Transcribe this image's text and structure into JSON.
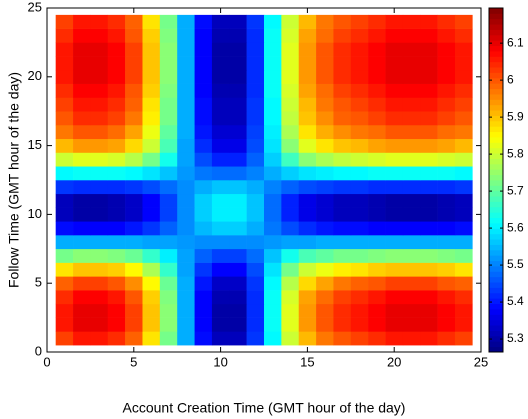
{
  "chart_data": {
    "type": "heatmap",
    "x_label": "Account Creation Time (GMT hour of the day)",
    "y_label": "Follow Time (GMT hour of the day)",
    "x": [
      1,
      2,
      3,
      4,
      5,
      6,
      7,
      8,
      9,
      10,
      11,
      12,
      13,
      14,
      15,
      16,
      17,
      18,
      19,
      20,
      21,
      22,
      23,
      24
    ],
    "y": [
      1,
      2,
      3,
      4,
      5,
      6,
      7,
      8,
      9,
      10,
      11,
      12,
      13,
      14,
      15,
      16,
      17,
      18,
      19,
      20,
      21,
      22,
      23,
      24
    ],
    "values": [
      [
        6.02,
        6.06,
        6.06,
        6.04,
        5.99,
        5.87,
        5.72,
        5.54,
        5.39,
        5.32,
        5.32,
        5.43,
        5.61,
        5.8,
        5.91,
        5.97,
        6.0,
        6.02,
        6.04,
        6.06,
        6.06,
        6.06,
        6.04,
        6.02
      ],
      [
        6.06,
        6.1,
        6.1,
        6.08,
        6.02,
        5.9,
        5.74,
        5.54,
        5.38,
        5.3,
        5.3,
        5.42,
        5.62,
        5.82,
        5.94,
        6.0,
        6.04,
        6.06,
        6.08,
        6.1,
        6.1,
        6.1,
        6.08,
        6.06
      ],
      [
        6.06,
        6.1,
        6.1,
        6.08,
        6.02,
        5.9,
        5.74,
        5.54,
        5.38,
        5.3,
        5.3,
        5.42,
        5.62,
        5.82,
        5.94,
        6.0,
        6.04,
        6.06,
        6.08,
        6.1,
        6.1,
        6.1,
        6.08,
        6.06
      ],
      [
        6.04,
        6.08,
        6.08,
        6.06,
        6.0,
        5.89,
        5.73,
        5.54,
        5.38,
        5.31,
        5.31,
        5.42,
        5.62,
        5.81,
        5.93,
        5.98,
        6.02,
        6.04,
        6.06,
        6.08,
        6.08,
        6.08,
        6.06,
        6.04
      ],
      [
        5.99,
        6.02,
        6.02,
        6.0,
        5.95,
        5.85,
        5.71,
        5.54,
        5.4,
        5.33,
        5.33,
        5.43,
        5.61,
        5.78,
        5.88,
        5.93,
        5.97,
        5.99,
        6.0,
        6.02,
        6.02,
        6.02,
        6.0,
        5.99
      ],
      [
        5.87,
        5.9,
        5.9,
        5.89,
        5.85,
        5.77,
        5.66,
        5.53,
        5.43,
        5.38,
        5.38,
        5.45,
        5.59,
        5.72,
        5.8,
        5.83,
        5.86,
        5.87,
        5.89,
        5.9,
        5.9,
        5.9,
        5.89,
        5.87
      ],
      [
        5.72,
        5.74,
        5.74,
        5.73,
        5.71,
        5.66,
        5.6,
        5.53,
        5.47,
        5.44,
        5.44,
        5.48,
        5.56,
        5.63,
        5.68,
        5.7,
        5.72,
        5.72,
        5.73,
        5.74,
        5.74,
        5.74,
        5.73,
        5.72
      ],
      [
        5.54,
        5.54,
        5.54,
        5.54,
        5.54,
        5.53,
        5.53,
        5.52,
        5.51,
        5.51,
        5.51,
        5.51,
        5.52,
        5.53,
        5.53,
        5.54,
        5.54,
        5.54,
        5.54,
        5.54,
        5.54,
        5.54,
        5.54,
        5.54
      ],
      [
        5.39,
        5.38,
        5.38,
        5.38,
        5.4,
        5.43,
        5.47,
        5.51,
        5.55,
        5.57,
        5.57,
        5.54,
        5.49,
        5.45,
        5.42,
        5.4,
        5.39,
        5.39,
        5.38,
        5.38,
        5.38,
        5.38,
        5.38,
        5.39
      ],
      [
        5.32,
        5.3,
        5.3,
        5.31,
        5.33,
        5.38,
        5.44,
        5.51,
        5.57,
        5.6,
        5.6,
        5.56,
        5.48,
        5.41,
        5.36,
        5.34,
        5.32,
        5.32,
        5.31,
        5.3,
        5.3,
        5.3,
        5.31,
        5.32
      ],
      [
        5.32,
        5.3,
        5.3,
        5.31,
        5.33,
        5.38,
        5.44,
        5.51,
        5.57,
        5.6,
        5.6,
        5.56,
        5.48,
        5.41,
        5.36,
        5.34,
        5.32,
        5.32,
        5.31,
        5.3,
        5.3,
        5.3,
        5.31,
        5.32
      ],
      [
        5.43,
        5.42,
        5.42,
        5.42,
        5.43,
        5.45,
        5.48,
        5.51,
        5.54,
        5.56,
        5.56,
        5.54,
        5.5,
        5.47,
        5.45,
        5.44,
        5.43,
        5.43,
        5.42,
        5.42,
        5.42,
        5.42,
        5.42,
        5.43
      ],
      [
        5.61,
        5.62,
        5.62,
        5.62,
        5.61,
        5.59,
        5.56,
        5.52,
        5.49,
        5.48,
        5.48,
        5.5,
        5.54,
        5.57,
        5.59,
        5.6,
        5.61,
        5.61,
        5.62,
        5.62,
        5.62,
        5.62,
        5.62,
        5.61
      ],
      [
        5.8,
        5.82,
        5.82,
        5.81,
        5.78,
        5.72,
        5.63,
        5.53,
        5.45,
        5.41,
        5.41,
        5.47,
        5.57,
        5.67,
        5.74,
        5.77,
        5.79,
        5.8,
        5.81,
        5.82,
        5.82,
        5.82,
        5.81,
        5.8
      ],
      [
        5.91,
        5.94,
        5.94,
        5.93,
        5.88,
        5.8,
        5.68,
        5.53,
        5.42,
        5.36,
        5.36,
        5.45,
        5.59,
        5.74,
        5.82,
        5.87,
        5.9,
        5.91,
        5.93,
        5.94,
        5.94,
        5.94,
        5.93,
        5.91
      ],
      [
        5.97,
        6.0,
        6.0,
        5.98,
        5.93,
        5.83,
        5.7,
        5.54,
        5.4,
        5.34,
        5.34,
        5.44,
        5.6,
        5.77,
        5.87,
        5.92,
        5.95,
        5.97,
        5.98,
        6.0,
        6.0,
        6.0,
        5.98,
        5.97
      ],
      [
        6.0,
        6.04,
        6.04,
        6.02,
        5.97,
        5.86,
        5.72,
        5.54,
        5.39,
        5.32,
        5.32,
        5.43,
        5.61,
        5.79,
        5.9,
        5.95,
        5.99,
        6.0,
        6.02,
        6.04,
        6.04,
        6.04,
        6.02,
        6.0
      ],
      [
        6.02,
        6.06,
        6.06,
        6.04,
        5.99,
        5.87,
        5.72,
        5.54,
        5.39,
        5.32,
        5.32,
        5.43,
        5.61,
        5.8,
        5.91,
        5.97,
        6.0,
        6.02,
        6.04,
        6.06,
        6.06,
        6.06,
        6.04,
        6.02
      ],
      [
        6.04,
        6.08,
        6.08,
        6.06,
        6.0,
        5.89,
        5.73,
        5.54,
        5.38,
        5.31,
        5.31,
        5.42,
        5.62,
        5.81,
        5.93,
        5.98,
        6.02,
        6.04,
        6.06,
        6.08,
        6.08,
        6.08,
        6.06,
        6.04
      ],
      [
        6.06,
        6.1,
        6.1,
        6.08,
        6.02,
        5.9,
        5.74,
        5.54,
        5.38,
        5.3,
        5.3,
        5.42,
        5.62,
        5.82,
        5.94,
        6.0,
        6.04,
        6.06,
        6.08,
        6.1,
        6.1,
        6.1,
        6.08,
        6.06
      ],
      [
        6.06,
        6.1,
        6.1,
        6.08,
        6.02,
        5.9,
        5.74,
        5.54,
        5.38,
        5.3,
        5.3,
        5.42,
        5.62,
        5.82,
        5.94,
        6.0,
        6.04,
        6.06,
        6.08,
        6.1,
        6.1,
        6.1,
        6.08,
        6.06
      ],
      [
        6.06,
        6.1,
        6.1,
        6.08,
        6.02,
        5.9,
        5.74,
        5.54,
        5.38,
        5.3,
        5.3,
        5.42,
        5.62,
        5.82,
        5.94,
        6.0,
        6.04,
        6.06,
        6.08,
        6.1,
        6.1,
        6.1,
        6.08,
        6.06
      ],
      [
        6.04,
        6.08,
        6.08,
        6.06,
        6.0,
        5.89,
        5.73,
        5.54,
        5.38,
        5.31,
        5.31,
        5.42,
        5.62,
        5.81,
        5.93,
        5.98,
        6.02,
        6.04,
        6.06,
        6.08,
        6.08,
        6.08,
        6.06,
        6.04
      ],
      [
        6.02,
        6.06,
        6.06,
        6.04,
        5.99,
        5.87,
        5.72,
        5.54,
        5.39,
        5.32,
        5.32,
        5.43,
        5.61,
        5.8,
        5.91,
        5.97,
        6.0,
        6.02,
        6.04,
        6.06,
        6.06,
        6.06,
        6.04,
        6.02
      ]
    ],
    "xlim": [
      0,
      25
    ],
    "ylim": [
      0,
      25
    ],
    "xticks": [
      0,
      5,
      10,
      15,
      20,
      25
    ],
    "yticks": [
      0,
      5,
      10,
      15,
      20,
      25
    ],
    "colormap": "jet",
    "clim": [
      5.265,
      6.195
    ],
    "colorbar_ticks": [
      5.3,
      5.4,
      5.5,
      5.6,
      5.7,
      5.8,
      5.9,
      6,
      6.1
    ]
  }
}
